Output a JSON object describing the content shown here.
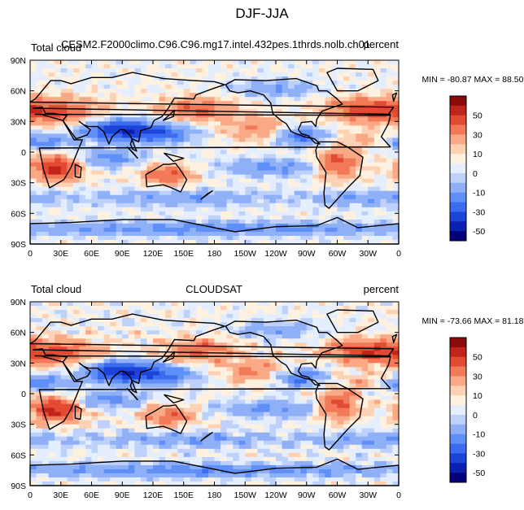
{
  "figure_title": "DJF-JJA",
  "colors": {
    "coast": "#000000",
    "palette": [
      "#04007a",
      "#0b1fb0",
      "#1c44d8",
      "#3b6cf0",
      "#5f8ff7",
      "#8fb0f7",
      "#bdd1fb",
      "#e5eefc",
      "#fff1e0",
      "#fdd2b4",
      "#f9a985",
      "#f27a58",
      "#e24a32",
      "#c0241a",
      "#8c0a0a"
    ]
  },
  "chart_data": [
    {
      "type": "heatmap",
      "title_left": "Total cloud",
      "title_center": "CESM2.F2000climo.C96.C96.mg17.intel.432pes.1thrds.nolb.ch01",
      "title_right": "percent",
      "stats": "MIN = -80.87  MAX =  88.50",
      "min": -80.87,
      "max": 88.5,
      "x_ticks": [
        "0",
        "30E",
        "60E",
        "90E",
        "120E",
        "150E",
        "180",
        "150W",
        "120W",
        "90W",
        "60W",
        "30W",
        "0"
      ],
      "y_ticks": [
        "90N",
        "60N",
        "30N",
        "0",
        "30S",
        "60S",
        "90S"
      ],
      "colorbar_levels": [
        -60,
        -50,
        -40,
        -30,
        -20,
        -10,
        -5,
        0,
        5,
        10,
        20,
        30,
        40,
        50,
        60
      ],
      "colorbar_labels": [
        "50",
        "30",
        "10",
        "0",
        "-10",
        "-30",
        "-50"
      ]
    },
    {
      "type": "heatmap",
      "title_left": "Total cloud",
      "title_center": "CLOUDSAT",
      "title_right": "percent",
      "stats": "MIN = -73.66  MAX =  81.18",
      "min": -73.66,
      "max": 81.18,
      "x_ticks": [
        "0",
        "30E",
        "60E",
        "90E",
        "120E",
        "150E",
        "180",
        "150W",
        "120W",
        "90W",
        "60W",
        "30W",
        "0"
      ],
      "y_ticks": [
        "90N",
        "60N",
        "30N",
        "0",
        "30S",
        "60S",
        "90S"
      ],
      "colorbar_levels": [
        -60,
        -50,
        -40,
        -30,
        -20,
        -10,
        -5,
        0,
        5,
        10,
        20,
        30,
        40,
        50,
        60
      ],
      "colorbar_labels": [
        "50",
        "30",
        "10",
        "0",
        "-10",
        "-30",
        "-50"
      ]
    }
  ]
}
